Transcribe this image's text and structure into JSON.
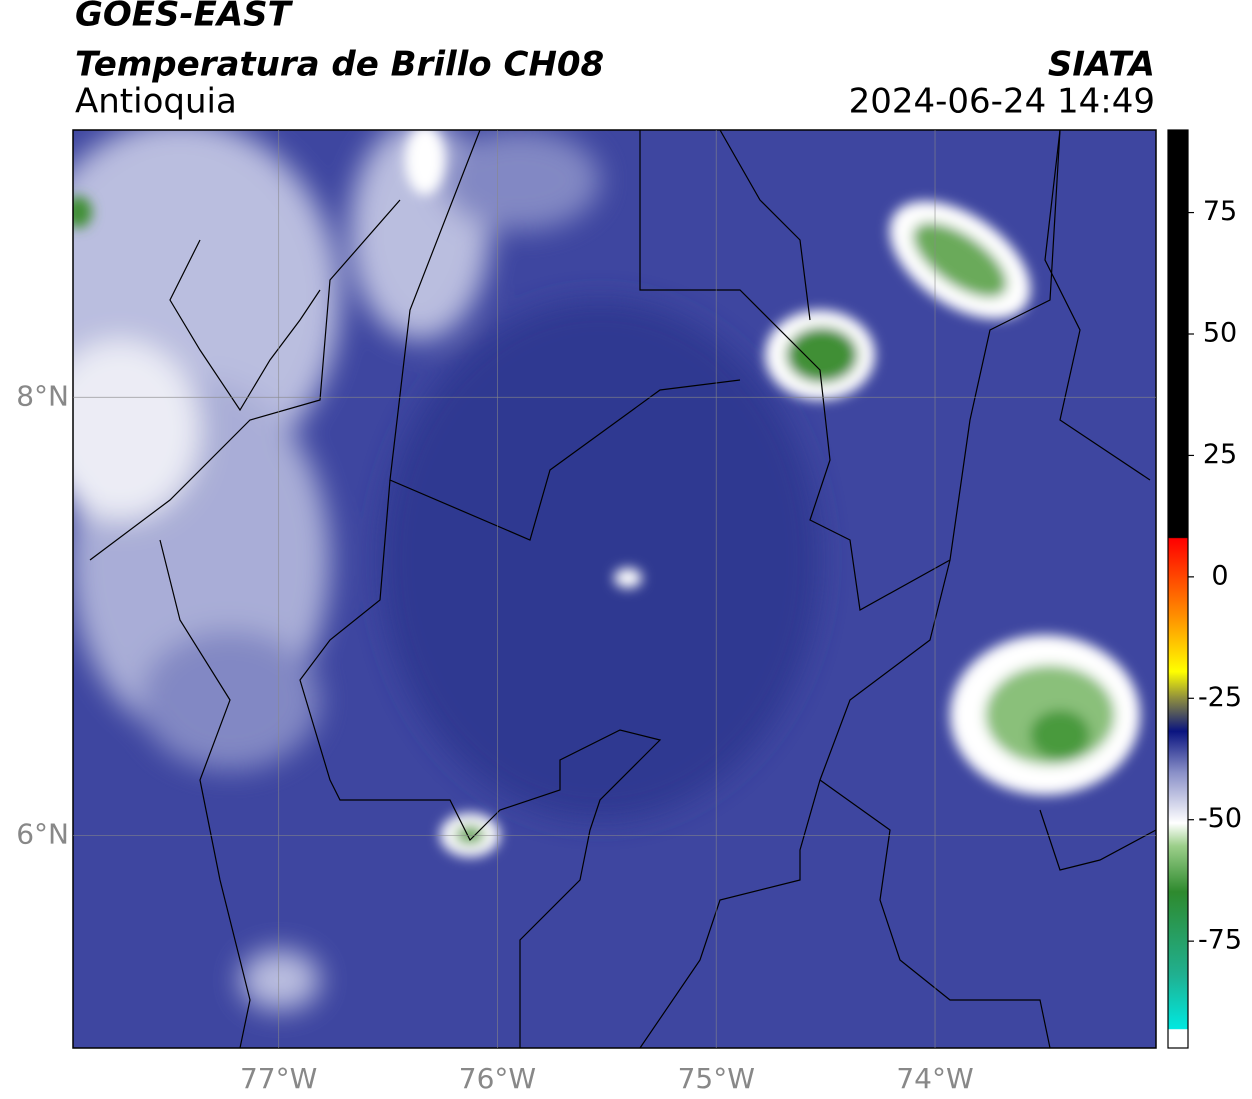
{
  "chart_data": {
    "type": "map",
    "title": "GOES-EAST",
    "subtitle": "Temperatura de Brillo CH08",
    "region": "Antioquia",
    "source": "SIATA",
    "datetime": "2024-06-24 14:49",
    "xlim": [
      -77.94,
      -72.99
    ],
    "ylim": [
      5.03,
      9.22
    ],
    "xticks": [
      {
        "value": -77,
        "label": "77°W"
      },
      {
        "value": -76,
        "label": "76°W"
      },
      {
        "value": -75,
        "label": "75°W"
      },
      {
        "value": -74,
        "label": "74°W"
      }
    ],
    "yticks": [
      {
        "value": 6,
        "label": "6°N"
      },
      {
        "value": 8,
        "label": "8°N"
      }
    ],
    "grid": true,
    "colorbar": {
      "lim": [
        -97,
        92
      ],
      "ticks": [
        -75,
        -50,
        -25,
        0,
        25,
        50,
        75
      ]
    }
  }
}
